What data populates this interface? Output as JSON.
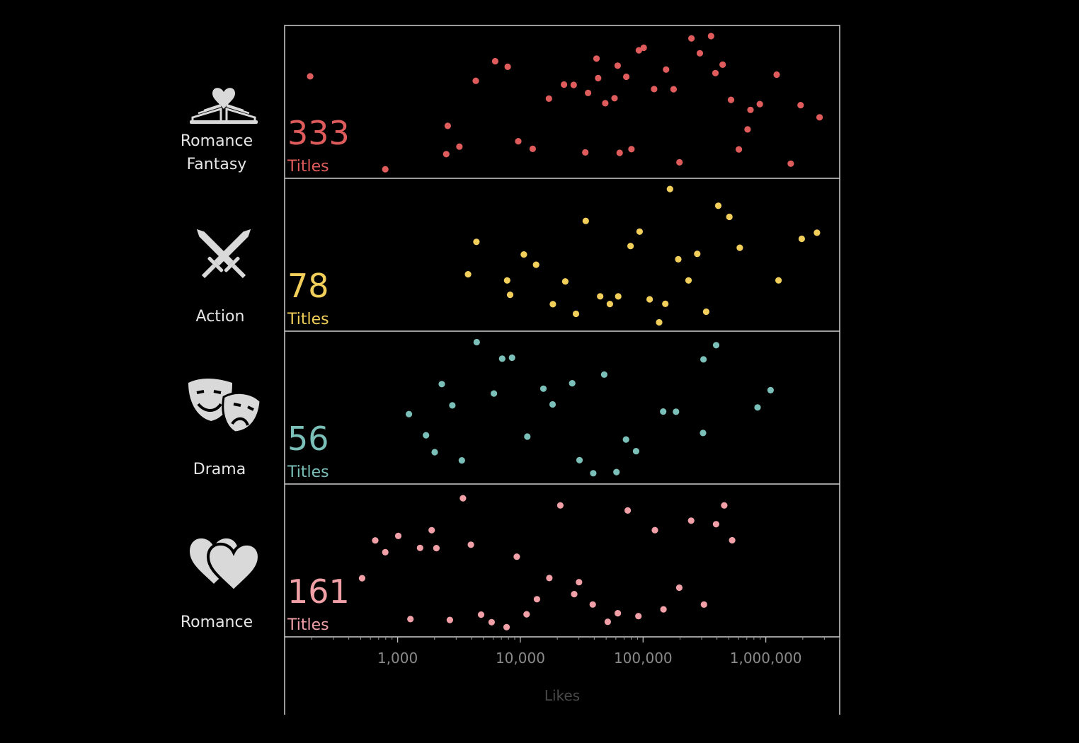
{
  "chart_data": {
    "type": "scatter",
    "x_scale": "log",
    "xlabel": "Likes",
    "xlim": [
      120,
      4000000
    ],
    "x_ticks": [
      {
        "value": 1000,
        "label": "1,000"
      },
      {
        "value": 10000,
        "label": "10,000"
      },
      {
        "value": 100000,
        "label": "100,000"
      },
      {
        "value": 1000000,
        "label": "1,000,000"
      }
    ],
    "count_suffix": "Titles",
    "series": [
      {
        "name": "Romance Fantasy",
        "label_lines": [
          "Romance",
          "Fantasy"
        ],
        "icon": "book-heart-icon",
        "count": 333,
        "color": "#e05c5c",
        "values": [
          190,
          780,
          2500,
          2600,
          3100,
          4200,
          6000,
          7800,
          10000,
          12000,
          18000,
          22000,
          28000,
          32000,
          36000,
          40000,
          45000,
          50000,
          55000,
          60000,
          65000,
          70000,
          80000,
          90000,
          100000,
          120000,
          150000,
          180000,
          200000,
          250000,
          300000,
          350000,
          400000,
          450000,
          500000,
          600000,
          700000,
          800000,
          900000,
          1200000,
          1600000,
          2000000,
          2600000
        ]
      },
      {
        "name": "Action",
        "label_lines": [
          "Action"
        ],
        "icon": "crossed-swords-icon",
        "count": 78,
        "color": "#f2cf5b",
        "values": [
          4000,
          4300,
          7500,
          8500,
          10000,
          14000,
          18000,
          23000,
          30000,
          36000,
          45000,
          55000,
          65000,
          80000,
          100000,
          110000,
          130000,
          150000,
          170000,
          200000,
          230000,
          270000,
          320000,
          400000,
          500000,
          600000,
          1300000,
          2000000,
          2700000
        ]
      },
      {
        "name": "Drama",
        "label_lines": [
          "Drama"
        ],
        "icon": "theater-masks-icon",
        "count": 56,
        "color": "#7bbfb9",
        "values": [
          1300,
          1600,
          2000,
          2200,
          2800,
          3500,
          4500,
          6000,
          7500,
          9000,
          11000,
          15000,
          19000,
          25000,
          32000,
          40000,
          50000,
          60000,
          75000,
          90000,
          150000,
          180000,
          300000,
          320000,
          380000,
          900000,
          1100000
        ]
      },
      {
        "name": "Romance",
        "label_lines": [
          "Romance"
        ],
        "icon": "two-hearts-icon",
        "count": 161,
        "color": "#f2a0a8",
        "values": [
          500,
          650,
          800,
          1000,
          1200,
          1500,
          1800,
          2200,
          2700,
          3200,
          4000,
          5000,
          6000,
          7500,
          9000,
          11000,
          14000,
          17000,
          21000,
          26000,
          32000,
          40000,
          50000,
          62000,
          78000,
          95000,
          120000,
          150000,
          190000,
          240000,
          300000,
          380000,
          480000,
          550000
        ]
      }
    ]
  }
}
